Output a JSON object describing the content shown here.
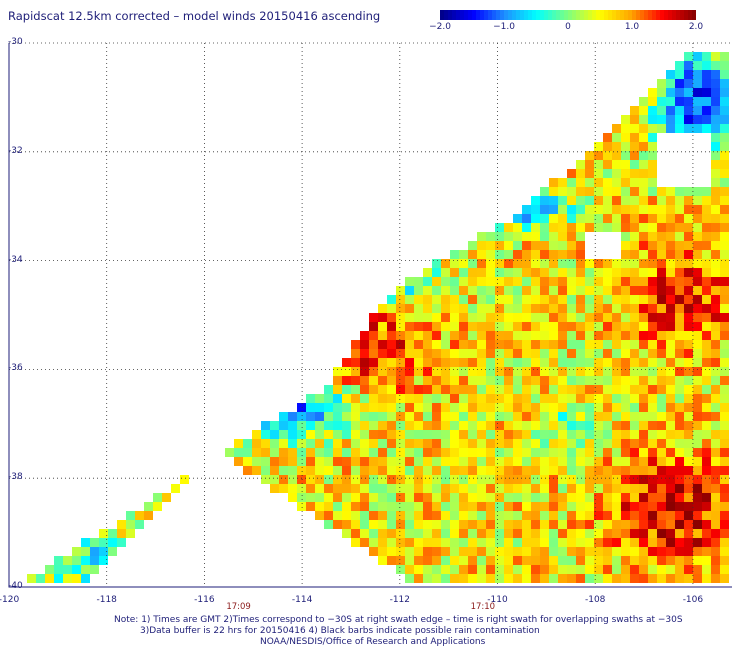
{
  "title": "Rapidscat 12.5km corrected – model winds 20150416 ascending",
  "colorbar": {
    "min": -2.0,
    "max": 2.0,
    "tick_labels": [
      "−2.0",
      "−1.0",
      "0",
      "1.0",
      "2.0"
    ],
    "tick_values": [
      -2.0,
      -1.0,
      0,
      1.0,
      2.0
    ],
    "colors": [
      "#00008b",
      "#0000ff",
      "#1e90ff",
      "#00ffff",
      "#7fff7f",
      "#ffff00",
      "#ffa500",
      "#ff0000",
      "#8b0000"
    ]
  },
  "map": {
    "lon_range": [
      -120,
      -105.2
    ],
    "lat_range": [
      -30,
      -40
    ],
    "lat_ticks": [
      "-30",
      "-32",
      "-34",
      "-36",
      "-38",
      "-40"
    ],
    "lon_ticks": [
      "-120",
      "-118",
      "-116",
      "-114",
      "-112",
      "-110",
      "-108",
      "-106"
    ],
    "time_labels": [
      {
        "text": "17:09",
        "lon": -115.3
      },
      {
        "text": "17:10",
        "lon": -110.3
      }
    ],
    "grid": true
  },
  "notes": [
    "Note: 1) Times are GMT 2)Times correspond to −30S at right swath edge – time is right swath for overlapping swaths at −30S",
    "3)Data buffer is 22 hrs for 20150416 4) Black barbs indicate possible rain contamination",
    "NOAA/NESDIS/Office of Research and Applications"
  ]
}
